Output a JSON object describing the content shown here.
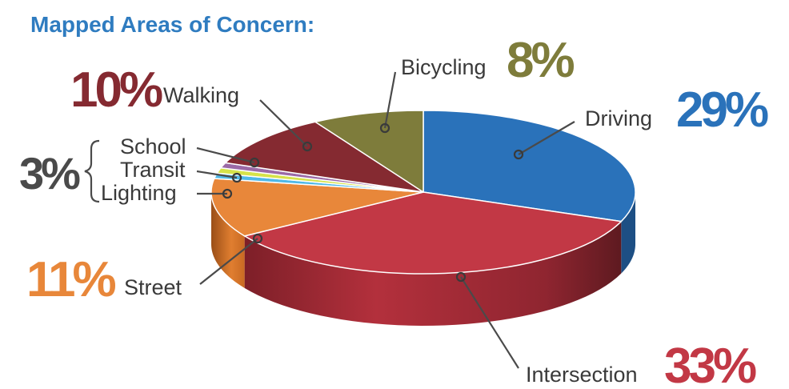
{
  "chart_data": {
    "type": "pie",
    "title": "Mapped Areas of Concern:",
    "slices": [
      {
        "label": "Driving",
        "value": 29,
        "display": "29%",
        "color": "#2a72ba"
      },
      {
        "label": "Intersection",
        "value": 33,
        "display": "33%",
        "color": "#c23845"
      },
      {
        "label": "Street",
        "value": 11,
        "display": "11%",
        "color": "#e8873a"
      },
      {
        "label": "Lighting",
        "value": 1,
        "color": "#4fb8e8"
      },
      {
        "label": "Transit",
        "value": 1,
        "color": "#d6e24a"
      },
      {
        "label": "School",
        "value": 1,
        "color": "#9b6aa6"
      },
      {
        "label": "Walking",
        "value": 10,
        "display": "10%",
        "color": "#852a31"
      },
      {
        "label": "Bicycling",
        "value": 8,
        "display": "8%",
        "color": "#7e7c3b"
      }
    ],
    "group_annotation": {
      "members": [
        "School",
        "Transit",
        "Lighting"
      ],
      "display": "3%",
      "color": "#4a4a4a"
    },
    "legend": "none",
    "style": "3d"
  }
}
